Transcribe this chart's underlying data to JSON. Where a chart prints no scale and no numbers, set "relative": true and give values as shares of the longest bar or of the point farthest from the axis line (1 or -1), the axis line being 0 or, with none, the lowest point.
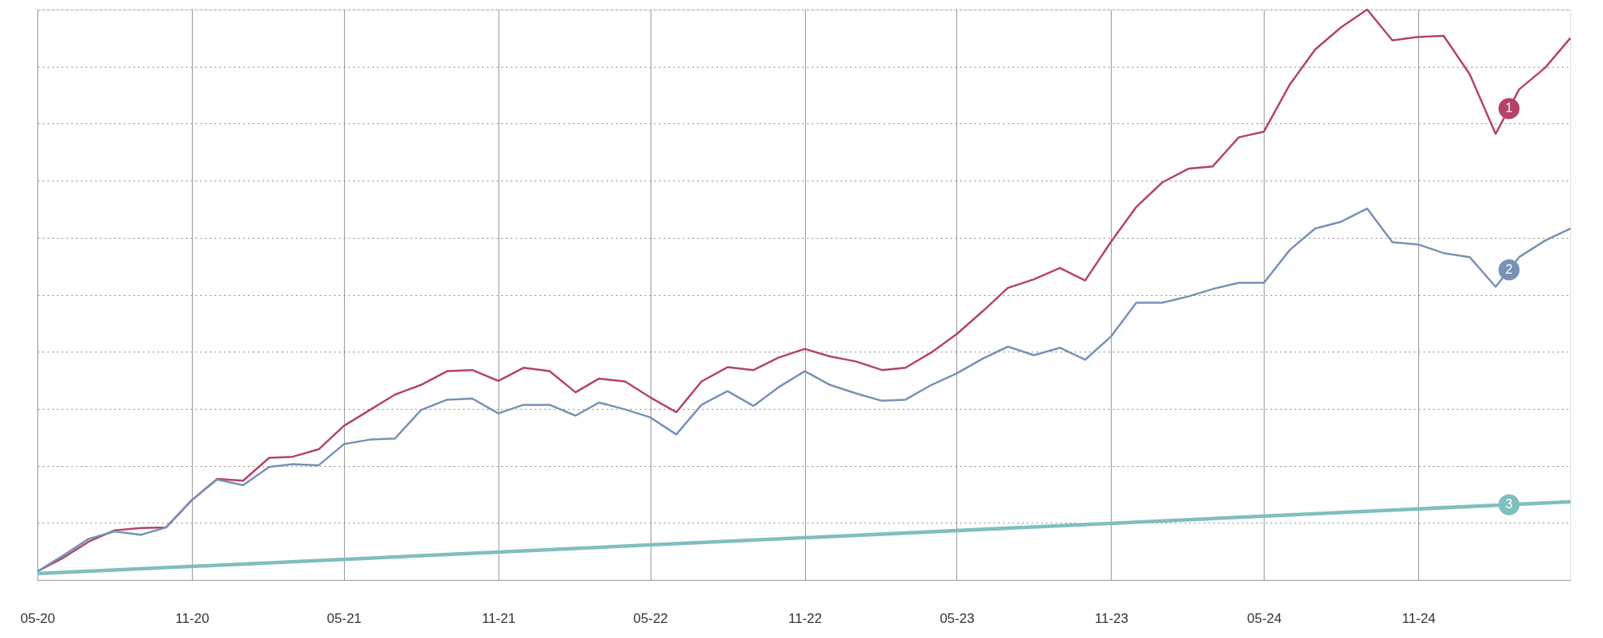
{
  "chart_data": {
    "type": "line",
    "relative": true,
    "grid": true,
    "legend": false,
    "marker": "none",
    "line_style": "solid",
    "x": [
      "2020-05",
      "2020-06",
      "2020-07",
      "2020-08",
      "2020-09",
      "2020-10",
      "2020-11",
      "2020-12",
      "2021-01",
      "2021-02",
      "2021-03",
      "2021-04",
      "2021-05",
      "2021-06",
      "2021-07",
      "2021-08",
      "2021-09",
      "2021-10",
      "2021-11",
      "2021-12",
      "2022-01",
      "2022-02",
      "2022-03",
      "2022-04",
      "2022-05",
      "2022-06",
      "2022-07",
      "2022-08",
      "2022-09",
      "2022-10",
      "2022-11",
      "2022-12",
      "2023-01",
      "2023-02",
      "2023-03",
      "2023-04",
      "2023-05",
      "2023-06",
      "2023-07",
      "2023-08",
      "2023-09",
      "2023-10",
      "2023-11",
      "2023-12",
      "2024-01",
      "2024-02",
      "2024-03",
      "2024-04",
      "2024-05",
      "2024-06",
      "2024-07",
      "2024-08",
      "2024-09",
      "2024-10",
      "2024-11",
      "2024-12",
      "2025-01",
      "2025-02",
      "2025-03",
      "2025-04",
      "2025-05"
    ],
    "xlim": [
      "2020-05",
      "2025-05"
    ],
    "xticks": [
      {
        "value": "2020-05",
        "label": "05-20"
      },
      {
        "value": "2020-11",
        "label": "11-20"
      },
      {
        "value": "2021-05",
        "label": "05-21"
      },
      {
        "value": "2021-11",
        "label": "11-21"
      },
      {
        "value": "2022-05",
        "label": "05-22"
      },
      {
        "value": "2022-11",
        "label": "11-22"
      },
      {
        "value": "2023-05",
        "label": "05-23"
      },
      {
        "value": "2023-11",
        "label": "11-23"
      },
      {
        "value": "2024-05",
        "label": "05-24"
      },
      {
        "value": "2024-11",
        "label": "11-24"
      }
    ],
    "series": [
      {
        "name": "1",
        "color": "#b5426a",
        "values": [
          0.015,
          0.039,
          0.067,
          0.087,
          0.091,
          0.092,
          0.14,
          0.177,
          0.174,
          0.214,
          0.216,
          0.229,
          0.27,
          0.298,
          0.325,
          0.342,
          0.366,
          0.368,
          0.349,
          0.372,
          0.366,
          0.329,
          0.353,
          0.348,
          0.32,
          0.294,
          0.348,
          0.373,
          0.368,
          0.39,
          0.405,
          0.392,
          0.383,
          0.368,
          0.372,
          0.399,
          0.431,
          0.471,
          0.512,
          0.527,
          0.547,
          0.525,
          0.593,
          0.654,
          0.697,
          0.721,
          0.725,
          0.776,
          0.786,
          0.869,
          0.93,
          0.969,
          1,
          0.946,
          0.952,
          0.954,
          0.887,
          0.782,
          0.86,
          0.898,
          0.95
        ]
      },
      {
        "name": "2",
        "color": "#7891b5",
        "values": [
          0.015,
          0.043,
          0.072,
          0.085,
          0.079,
          0.092,
          0.14,
          0.176,
          0.166,
          0.198,
          0.203,
          0.201,
          0.238,
          0.246,
          0.248,
          0.298,
          0.316,
          0.318,
          0.292,
          0.307,
          0.307,
          0.288,
          0.311,
          0.299,
          0.285,
          0.255,
          0.307,
          0.331,
          0.305,
          0.338,
          0.366,
          0.342,
          0.327,
          0.314,
          0.316,
          0.342,
          0.362,
          0.388,
          0.409,
          0.394,
          0.407,
          0.386,
          0.427,
          0.486,
          0.486,
          0.497,
          0.51,
          0.521,
          0.521,
          0.579,
          0.616,
          0.628,
          0.651,
          0.592,
          0.588,
          0.573,
          0.566,
          0.514,
          0.566,
          0.595,
          0.616
        ]
      },
      {
        "name": "3",
        "color": "#7fbfbd",
        "x": [
          "2020-05",
          "2025-05"
        ],
        "values": [
          0.011,
          0.137
        ]
      }
    ]
  }
}
